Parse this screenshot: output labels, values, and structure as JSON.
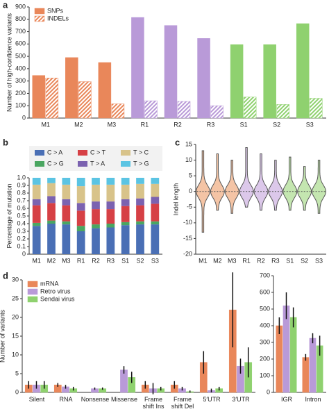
{
  "chart_data": [
    {
      "type": "bar",
      "panel": "a",
      "y_label": "Number of high-confidence variants",
      "categories": [
        "M1",
        "M2",
        "M3",
        "R1",
        "R2",
        "R3",
        "S1",
        "S2",
        "S3"
      ],
      "category_colors": [
        "#e9875a",
        "#e9875a",
        "#e9875a",
        "#b99ad8",
        "#b99ad8",
        "#b99ad8",
        "#8fd16f",
        "#8fd16f",
        "#8fd16f"
      ],
      "series": [
        {
          "name": "SNPs",
          "color": "#e9875a",
          "values": [
            345,
            490,
            450,
            815,
            750,
            645,
            595,
            595,
            765
          ]
        },
        {
          "name": "INDELs",
          "color": "#e9875a",
          "hatch": true,
          "values": [
            325,
            295,
            115,
            140,
            135,
            100,
            170,
            110,
            160
          ]
        }
      ],
      "ylim": [
        0,
        900
      ],
      "yticks": [
        0,
        100,
        200,
        300,
        400,
        500,
        600,
        700,
        800,
        900
      ],
      "legend": "upper left"
    },
    {
      "type": "stacked_bar",
      "panel": "b",
      "y_label": "Percentage of mutation",
      "categories": [
        "M1",
        "M2",
        "M3",
        "R1",
        "R2",
        "R3",
        "S1",
        "S2",
        "S3"
      ],
      "series": [
        {
          "name": "C > A",
          "color": "#4a6fb5",
          "values": [
            0.37,
            0.4,
            0.39,
            0.3,
            0.34,
            0.35,
            0.38,
            0.39,
            0.39
          ]
        },
        {
          "name": "C > G",
          "color": "#4aa661",
          "values": [
            0.04,
            0.04,
            0.04,
            0.07,
            0.05,
            0.05,
            0.04,
            0.04,
            0.04
          ]
        },
        {
          "name": "C > T",
          "color": "#d64045",
          "values": [
            0.23,
            0.23,
            0.21,
            0.2,
            0.2,
            0.19,
            0.21,
            0.21,
            0.23
          ]
        },
        {
          "name": "T > A",
          "color": "#7b62b0",
          "values": [
            0.08,
            0.09,
            0.08,
            0.1,
            0.1,
            0.1,
            0.09,
            0.09,
            0.09
          ]
        },
        {
          "name": "T > C",
          "color": "#d8c38a",
          "values": [
            0.19,
            0.17,
            0.19,
            0.22,
            0.22,
            0.22,
            0.19,
            0.19,
            0.17
          ]
        },
        {
          "name": "T > G",
          "color": "#5bc4e3",
          "values": [
            0.09,
            0.07,
            0.09,
            0.11,
            0.09,
            0.09,
            0.09,
            0.08,
            0.08
          ]
        }
      ],
      "ylim": [
        0,
        1
      ],
      "yticks": [
        0,
        0.1,
        0.2,
        0.3,
        0.4,
        0.5,
        0.6,
        0.7,
        0.8,
        0.9,
        {
          "value": 1,
          "label": "1.0"
        }
      ],
      "legend": "top"
    },
    {
      "type": "violin",
      "panel": "c",
      "y_label": "Indel length",
      "categories": [
        "M1",
        "M2",
        "M3",
        "R1",
        "R2",
        "R3",
        "S1",
        "S2",
        "S3"
      ],
      "category_colors": [
        "#f4c4a5",
        "#f4c4a5",
        "#f4c4a5",
        "#dcc8ea",
        "#dcc8ea",
        "#dcc8ea",
        "#c4e6b0",
        "#c4e6b0",
        "#c4e6b0"
      ],
      "min": [
        -13,
        -6,
        -7,
        -5,
        -6,
        -6,
        -6,
        -6,
        -7
      ],
      "max": [
        13,
        12,
        10,
        14,
        12,
        10,
        11,
        8,
        10
      ],
      "median": [
        0,
        0,
        0,
        0,
        0,
        0,
        0,
        0,
        0
      ],
      "ylim": [
        -20,
        15
      ],
      "yticks": [
        -20,
        -15,
        -10,
        -5,
        0,
        5,
        10,
        15
      ]
    },
    {
      "type": "bar",
      "panel": "d",
      "y_label": "Number of variants",
      "categories": [
        "Silent",
        "RNA",
        "Nonsense",
        "Missense",
        "Frame shift Ins",
        "Frame shift Del",
        "5′UTR",
        "3′UTR"
      ],
      "series": [
        {
          "name": "mRNA",
          "color": "#e9875a",
          "values": [
            2,
            2,
            0,
            0,
            2,
            2,
            8,
            22
          ],
          "errors": [
            1,
            0.5,
            0,
            0,
            1,
            1,
            3,
            10
          ]
        },
        {
          "name": "Retro virus",
          "color": "#b99ad8",
          "values": [
            2,
            1.5,
            1,
            6,
            1,
            1,
            0.5,
            7
          ],
          "errors": [
            1,
            0.5,
            0.3,
            1,
            1.5,
            0.5,
            0.5,
            2
          ]
        },
        {
          "name": "Sendai virus",
          "color": "#8fd16f",
          "values": [
            2,
            1,
            1,
            4,
            1,
            0.2,
            1,
            8
          ],
          "errors": [
            1,
            0.5,
            0.3,
            1.5,
            0.5,
            0.3,
            0.5,
            4
          ]
        }
      ],
      "ylim": [
        0,
        30
      ],
      "yticks": [
        0,
        5,
        10,
        15,
        20,
        25,
        30
      ],
      "legend": "upper left"
    },
    {
      "type": "bar",
      "categories": [
        "IGR",
        "Intron"
      ],
      "series": [
        {
          "color": "#e9875a",
          "values": [
            400,
            210
          ],
          "errors": [
            50,
            20
          ]
        },
        {
          "color": "#b99ad8",
          "values": [
            520,
            325
          ],
          "errors": [
            80,
            30
          ]
        },
        {
          "color": "#8fd16f",
          "values": [
            450,
            280
          ],
          "errors": [
            60,
            60
          ]
        }
      ],
      "ylim": [
        0,
        700
      ],
      "yticks": [
        0,
        100,
        200,
        300,
        400,
        500,
        600,
        700
      ]
    }
  ]
}
